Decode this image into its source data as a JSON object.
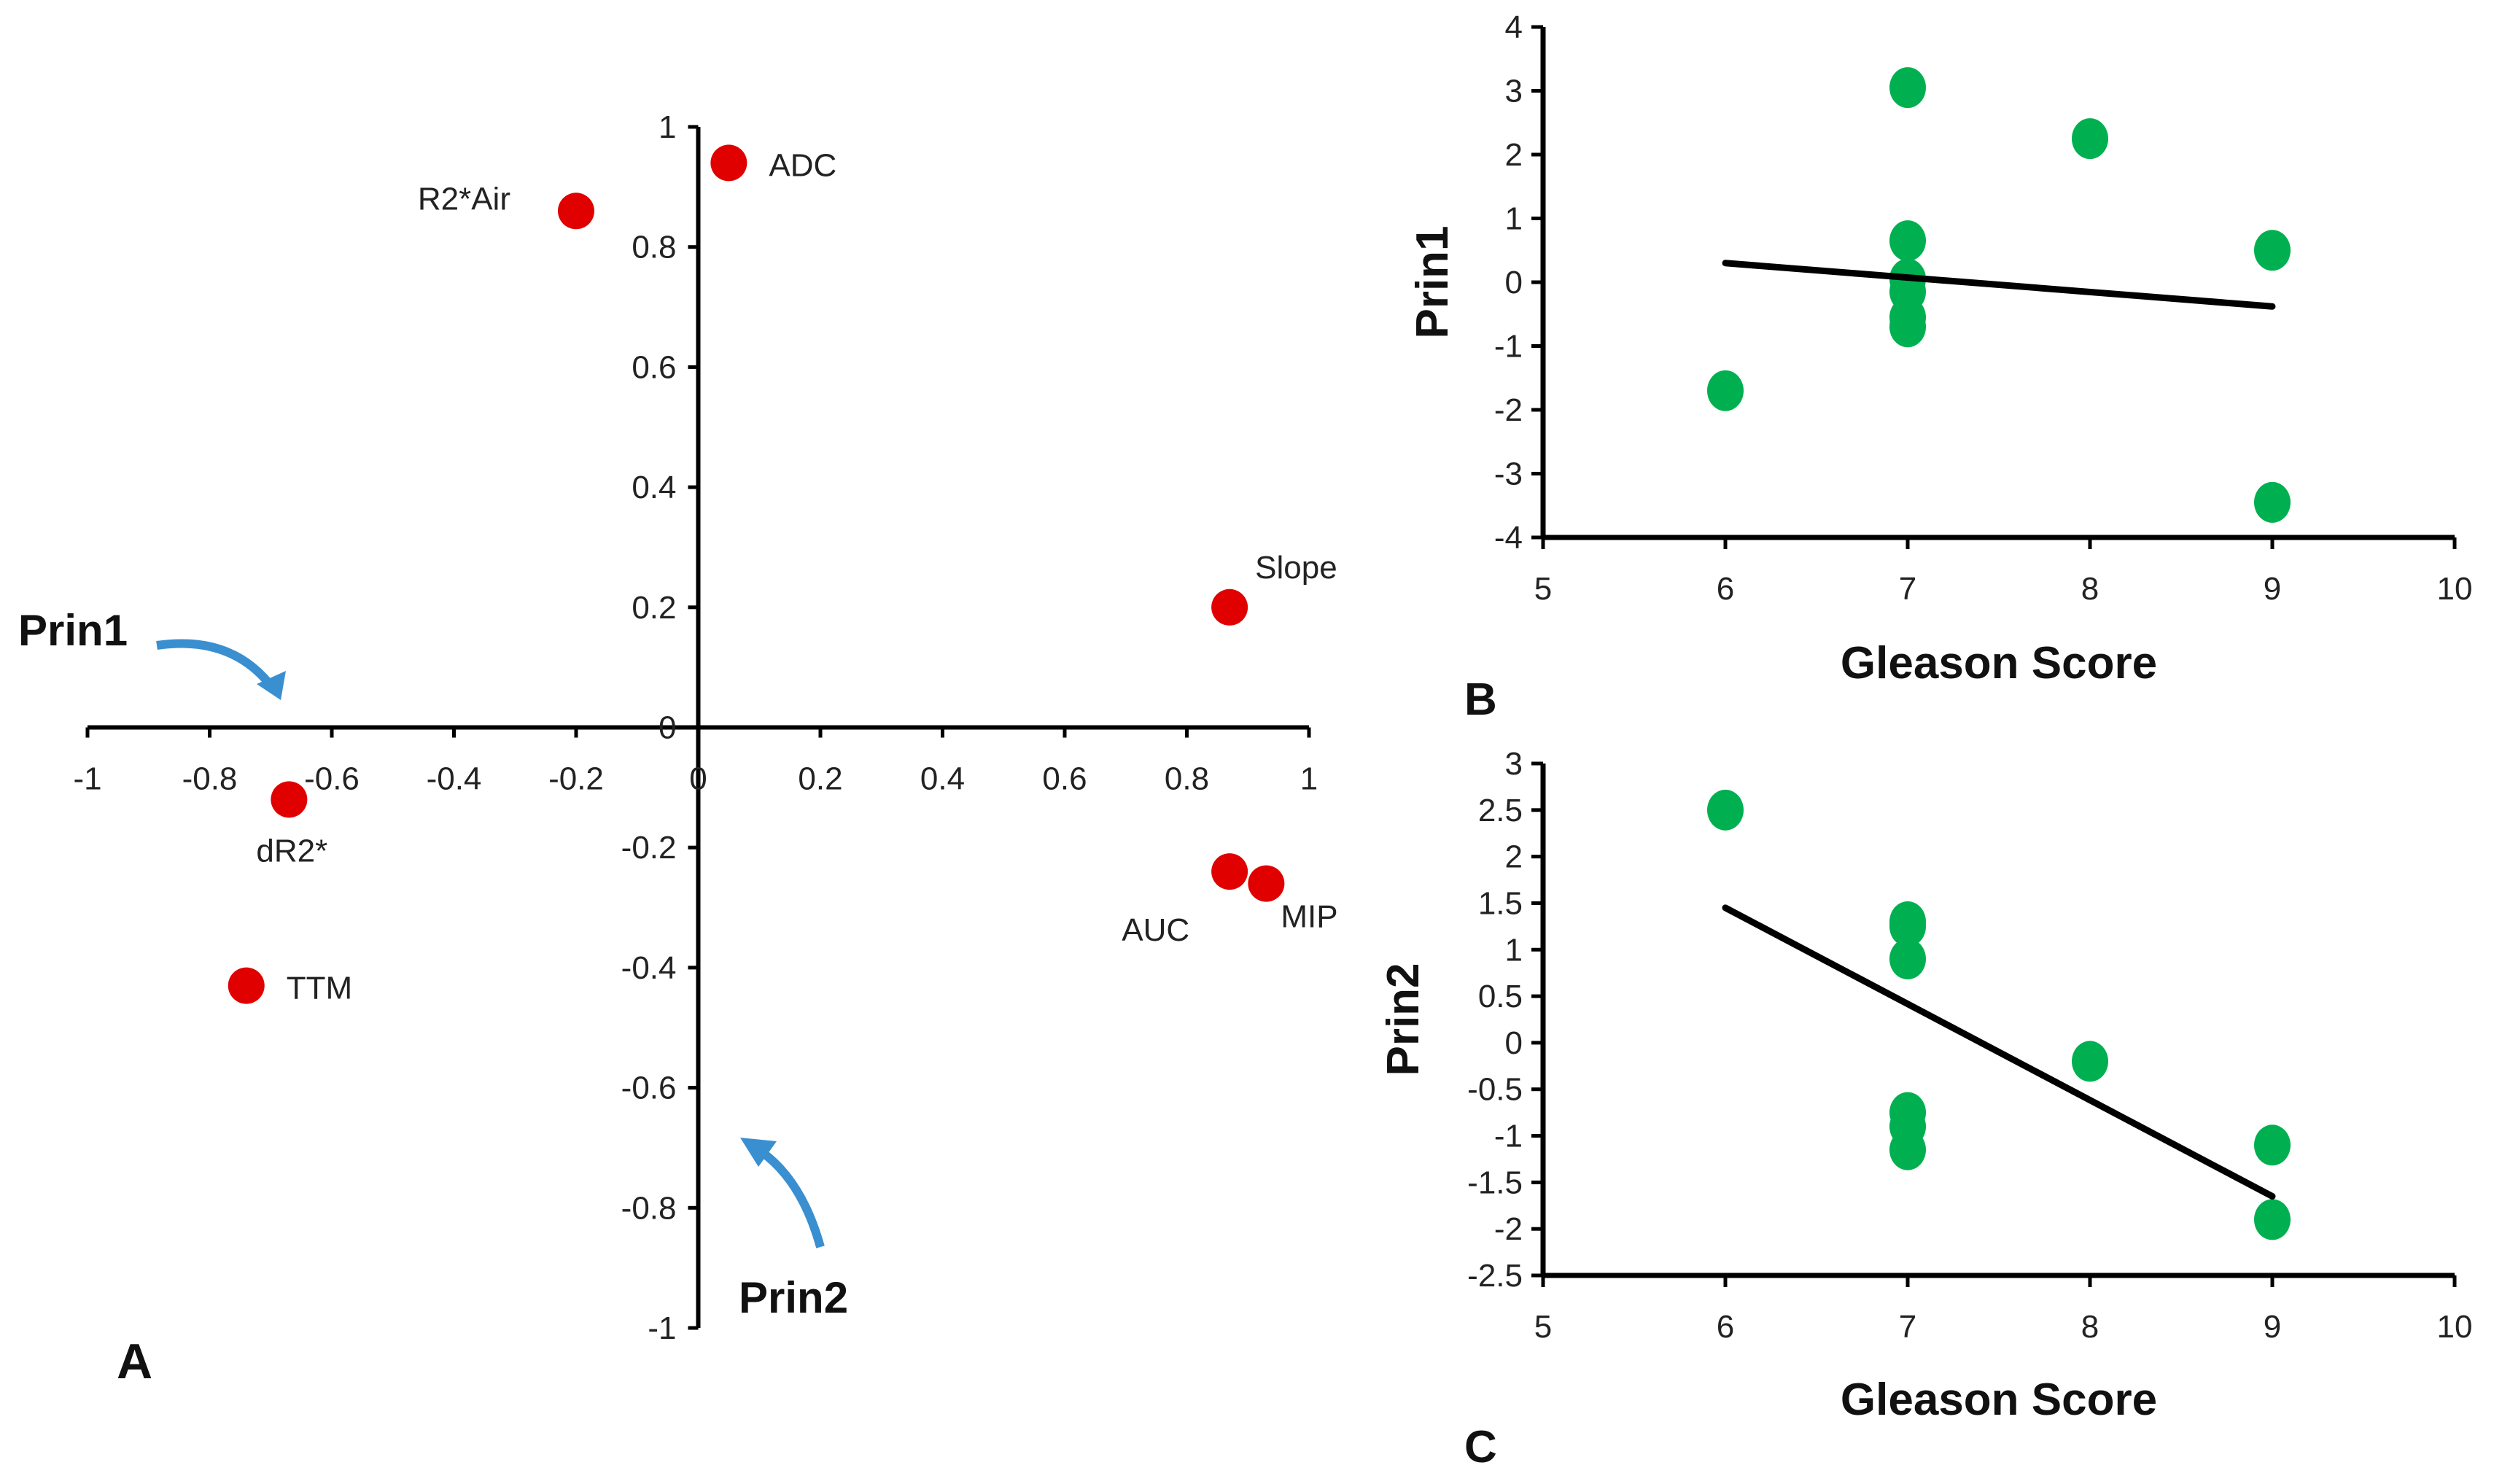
{
  "chart_data": [
    {
      "type": "scatter",
      "panel_label": "A",
      "xlim": [
        -1,
        1
      ],
      "ylim": [
        -1,
        1
      ],
      "xticks": [
        "-1",
        "-0.8",
        "-0.6",
        "-0.4",
        "-0.2",
        "0",
        "0.2",
        "0.4",
        "0.6",
        "0.8",
        "1"
      ],
      "yticks": [
        "1",
        "0.8",
        "0.6",
        "0.4",
        "0.2",
        "0",
        "-0.2",
        "-0.4",
        "-0.6",
        "-0.8",
        "-1"
      ],
      "points": [
        {
          "label": "ADC",
          "x": 0.05,
          "y": 0.94
        },
        {
          "label": "R2*Air",
          "x": -0.2,
          "y": 0.86
        },
        {
          "label": "Slope",
          "x": 0.87,
          "y": 0.2
        },
        {
          "label": "dR2*",
          "x": -0.67,
          "y": -0.12
        },
        {
          "label": "TTM",
          "x": -0.74,
          "y": -0.43
        },
        {
          "label": "AUC",
          "x": 0.87,
          "y": -0.24
        },
        {
          "label": "MIP",
          "x": 0.93,
          "y": -0.26
        }
      ],
      "annotations": [
        "Prin1",
        "Prin2"
      ],
      "color": "#e00000",
      "arrow_color": "#3a8fd0"
    },
    {
      "type": "scatter",
      "panel_label": "B",
      "xlabel": "Gleason Score",
      "ylabel": "Prin1",
      "xlim": [
        5,
        10
      ],
      "ylim": [
        -4,
        4
      ],
      "xticks": [
        "5",
        "6",
        "7",
        "8",
        "9",
        "10"
      ],
      "yticks": [
        "4",
        "3",
        "2",
        "1",
        "0",
        "-1",
        "-2",
        "-3",
        "-4"
      ],
      "x": [
        6,
        7,
        7,
        7,
        7,
        7,
        7,
        8,
        9,
        9
      ],
      "y": [
        -1.7,
        3.05,
        0.65,
        0.05,
        -0.15,
        -0.55,
        -0.7,
        2.25,
        0.5,
        -3.45
      ],
      "trendline": {
        "x": [
          6,
          9
        ],
        "y": [
          0.3,
          -0.38
        ]
      },
      "color": "#00b050"
    },
    {
      "type": "scatter",
      "panel_label": "C",
      "xlabel": "Gleason Score",
      "ylabel": "Prin2",
      "xlim": [
        5,
        10
      ],
      "ylim": [
        -2.5,
        3
      ],
      "xticks": [
        "5",
        "6",
        "7",
        "8",
        "9",
        "10"
      ],
      "yticks": [
        "3",
        "2.5",
        "2",
        "1.5",
        "1",
        "0.5",
        "0",
        "-0.5",
        "-1",
        "-1.5",
        "-2",
        "-2.5"
      ],
      "x": [
        6,
        7,
        7,
        7,
        7,
        7,
        7,
        8,
        9,
        9
      ],
      "y": [
        2.5,
        1.3,
        1.25,
        0.9,
        -0.75,
        -0.9,
        -1.15,
        -0.2,
        -1.1,
        -1.9
      ],
      "trendline": {
        "x": [
          6,
          9
        ],
        "y": [
          1.45,
          -1.65
        ]
      },
      "color": "#00b050"
    }
  ]
}
